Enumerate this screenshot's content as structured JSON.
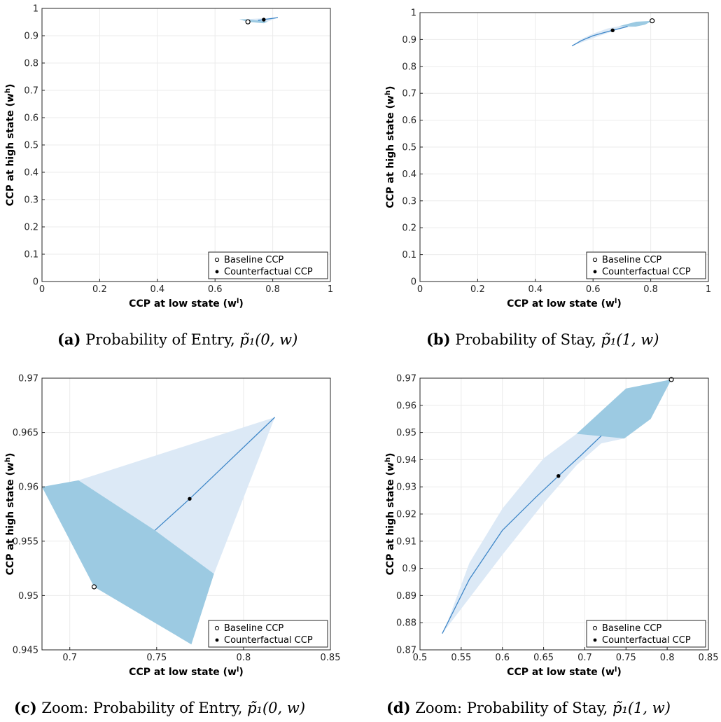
{
  "colors": {
    "band_light": "#dce9f6",
    "band_dark": "#9ccae2",
    "path_line": "#3f87c8",
    "grid": "#ebebeb",
    "axis": "#262626"
  },
  "legend": {
    "baseline": "Baseline CCP",
    "counterfactual": "Counterfactual CCP"
  },
  "chart_data": [
    {
      "id": "a",
      "type": "line",
      "title": "",
      "xlabel": "CCP at low state (w",
      "xlabel_sup": "l",
      "ylabel": "CCP at high state (w",
      "ylabel_sup": "h",
      "xlim": [
        0,
        1
      ],
      "ylim": [
        0,
        1
      ],
      "xticks": [
        "0",
        "0.2",
        "0.4",
        "0.6",
        "0.8",
        "1"
      ],
      "yticks": [
        "0",
        "0.1",
        "0.2",
        "0.3",
        "0.4",
        "0.5",
        "0.6",
        "0.7",
        "0.8",
        "0.9",
        "1"
      ],
      "grid": true,
      "legend_position": "bottom-right",
      "light_region": [
        [
          0.705,
          0.9606
        ],
        [
          0.818,
          0.9664
        ],
        [
          0.783,
          0.952
        ],
        [
          0.749,
          0.956
        ]
      ],
      "dark_region": [
        [
          0.684,
          0.96
        ],
        [
          0.705,
          0.9606
        ],
        [
          0.749,
          0.956
        ],
        [
          0.783,
          0.952
        ],
        [
          0.77,
          0.9455
        ],
        [
          0.714,
          0.9508
        ]
      ],
      "path": [
        [
          0.749,
          0.956
        ],
        [
          0.769,
          0.9589
        ],
        [
          0.818,
          0.9664
        ]
      ],
      "baseline": [
        0.714,
        0.9508
      ],
      "counterfactual": [
        0.769,
        0.9589
      ],
      "caption": {
        "letter": "(a)",
        "text": "Probability of Entry, ",
        "math": "p̃₁(0, w)"
      }
    },
    {
      "id": "b",
      "type": "line",
      "title": "",
      "xlabel": "CCP at low state (w",
      "xlabel_sup": "l",
      "ylabel": "CCP at high state (w",
      "ylabel_sup": "h",
      "xlim": [
        0,
        1
      ],
      "ylim": [
        0,
        1
      ],
      "xticks": [
        "0",
        "0.2",
        "0.4",
        "0.6",
        "0.8",
        "1"
      ],
      "yticks": [
        "0",
        "0.1",
        "0.2",
        "0.3",
        "0.4",
        "0.5",
        "0.6",
        "0.7",
        "0.8",
        "0.9",
        "1"
      ],
      "grid": true,
      "legend_position": "bottom-right",
      "light_region": [
        [
          0.527,
          0.876
        ],
        [
          0.6,
          0.905
        ],
        [
          0.65,
          0.924
        ],
        [
          0.69,
          0.938
        ],
        [
          0.72,
          0.946
        ],
        [
          0.748,
          0.9478
        ],
        [
          0.72,
          0.9532
        ],
        [
          0.69,
          0.9495
        ],
        [
          0.65,
          0.9405
        ],
        [
          0.6,
          0.922
        ],
        [
          0.56,
          0.902
        ],
        [
          0.53,
          0.8775
        ]
      ],
      "dark_region": [
        [
          0.69,
          0.9495
        ],
        [
          0.75,
          0.9662
        ],
        [
          0.805,
          0.9695
        ],
        [
          0.78,
          0.955
        ],
        [
          0.748,
          0.9478
        ]
      ],
      "path": [
        [
          0.527,
          0.876
        ],
        [
          0.56,
          0.896
        ],
        [
          0.6,
          0.914
        ],
        [
          0.64,
          0.926
        ],
        [
          0.668,
          0.934
        ],
        [
          0.695,
          0.9415
        ],
        [
          0.72,
          0.9488
        ]
      ],
      "baseline": [
        0.805,
        0.9695
      ],
      "counterfactual": [
        0.668,
        0.934
      ],
      "caption": {
        "letter": "(b)",
        "text": "Probability of Stay, ",
        "math": "p̃₁(1, w)"
      }
    },
    {
      "id": "c",
      "type": "line",
      "title": "",
      "xlabel": "CCP at low state (w",
      "xlabel_sup": "l",
      "ylabel": "CCP at high state (w",
      "ylabel_sup": "h",
      "xlim": [
        0.684,
        0.85
      ],
      "ylim": [
        0.945,
        0.97
      ],
      "xtick_values": [
        0.7,
        0.75,
        0.8,
        0.85
      ],
      "xticks": [
        "0.7",
        "0.75",
        "0.8",
        "0.85"
      ],
      "ytick_values": [
        0.945,
        0.95,
        0.955,
        0.96,
        0.965,
        0.97
      ],
      "yticks": [
        "0.945",
        "0.95",
        "0.955",
        "0.96",
        "0.965",
        "0.97"
      ],
      "grid": true,
      "legend_position": "bottom-right",
      "light_region": [
        [
          0.705,
          0.9606
        ],
        [
          0.818,
          0.9664
        ],
        [
          0.783,
          0.952
        ],
        [
          0.749,
          0.956
        ]
      ],
      "dark_region": [
        [
          0.684,
          0.96
        ],
        [
          0.705,
          0.9606
        ],
        [
          0.749,
          0.956
        ],
        [
          0.783,
          0.952
        ],
        [
          0.77,
          0.9455
        ],
        [
          0.714,
          0.9508
        ]
      ],
      "path": [
        [
          0.749,
          0.956
        ],
        [
          0.769,
          0.9589
        ],
        [
          0.818,
          0.9664
        ]
      ],
      "baseline": [
        0.714,
        0.9508
      ],
      "counterfactual": [
        0.769,
        0.9589
      ],
      "caption": {
        "letter": "(c)",
        "text": "Zoom: Probability of Entry, ",
        "math": "p̃₁(0, w)"
      }
    },
    {
      "id": "d",
      "type": "line",
      "title": "",
      "xlabel": "CCP at low state (w",
      "xlabel_sup": "l",
      "ylabel": "CCP at high state (w",
      "ylabel_sup": "h",
      "xlim": [
        0.5,
        0.85
      ],
      "ylim": [
        0.87,
        0.97
      ],
      "xtick_values": [
        0.5,
        0.55,
        0.6,
        0.65,
        0.7,
        0.75,
        0.8,
        0.85
      ],
      "xticks": [
        "0.5",
        "0.55",
        "0.6",
        "0.65",
        "0.7",
        "0.75",
        "0.8",
        "0.85"
      ],
      "ytick_values": [
        0.87,
        0.88,
        0.89,
        0.9,
        0.91,
        0.92,
        0.93,
        0.94,
        0.95,
        0.96,
        0.97
      ],
      "yticks": [
        "0.87",
        "0.88",
        "0.89",
        "0.9",
        "0.91",
        "0.92",
        "0.93",
        "0.94",
        "0.95",
        "0.96",
        "0.97"
      ],
      "grid": true,
      "legend_position": "bottom-right",
      "light_region": [
        [
          0.527,
          0.876
        ],
        [
          0.6,
          0.905
        ],
        [
          0.65,
          0.924
        ],
        [
          0.69,
          0.938
        ],
        [
          0.72,
          0.946
        ],
        [
          0.748,
          0.9478
        ],
        [
          0.72,
          0.9532
        ],
        [
          0.69,
          0.9495
        ],
        [
          0.65,
          0.9405
        ],
        [
          0.6,
          0.922
        ],
        [
          0.56,
          0.902
        ],
        [
          0.53,
          0.8775
        ]
      ],
      "dark_region": [
        [
          0.69,
          0.9495
        ],
        [
          0.75,
          0.9662
        ],
        [
          0.805,
          0.9695
        ],
        [
          0.78,
          0.955
        ],
        [
          0.748,
          0.9478
        ]
      ],
      "path": [
        [
          0.527,
          0.876
        ],
        [
          0.56,
          0.896
        ],
        [
          0.6,
          0.914
        ],
        [
          0.64,
          0.926
        ],
        [
          0.668,
          0.934
        ],
        [
          0.695,
          0.9415
        ],
        [
          0.72,
          0.9488
        ]
      ],
      "baseline": [
        0.805,
        0.9695
      ],
      "counterfactual": [
        0.668,
        0.934
      ],
      "caption": {
        "letter": "(d)",
        "text": "Zoom: Probability of Stay, ",
        "math": "p̃₁(1, w)"
      }
    }
  ]
}
